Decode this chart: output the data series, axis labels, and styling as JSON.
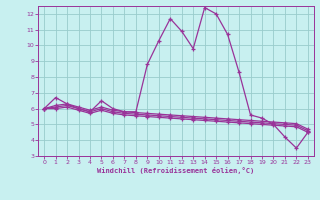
{
  "xlabel": "Windchill (Refroidissement éolien,°C)",
  "background_color": "#c8f0f0",
  "grid_color": "#99cccc",
  "line_color": "#993399",
  "x_values": [
    0,
    1,
    2,
    3,
    4,
    5,
    6,
    7,
    8,
    9,
    10,
    11,
    12,
    13,
    14,
    15,
    16,
    17,
    18,
    19,
    20,
    21,
    22,
    23
  ],
  "line1": [
    6.0,
    6.7,
    6.3,
    6.0,
    5.8,
    6.5,
    6.0,
    5.8,
    5.8,
    8.8,
    10.3,
    11.7,
    10.9,
    9.8,
    12.4,
    12.0,
    10.7,
    8.3,
    5.6,
    5.4,
    5.0,
    4.2,
    3.5,
    4.5
  ],
  "line2": [
    6.0,
    6.2,
    6.3,
    6.1,
    5.9,
    6.1,
    5.9,
    5.8,
    5.75,
    5.7,
    5.65,
    5.6,
    5.55,
    5.5,
    5.45,
    5.4,
    5.35,
    5.3,
    5.25,
    5.2,
    5.15,
    5.1,
    5.05,
    4.7
  ],
  "line3": [
    6.0,
    6.1,
    6.2,
    6.0,
    5.8,
    6.0,
    5.8,
    5.7,
    5.65,
    5.6,
    5.55,
    5.5,
    5.45,
    5.4,
    5.35,
    5.3,
    5.25,
    5.2,
    5.15,
    5.1,
    5.05,
    5.0,
    4.95,
    4.6
  ],
  "line4": [
    6.0,
    6.0,
    6.1,
    5.9,
    5.7,
    5.9,
    5.7,
    5.6,
    5.55,
    5.5,
    5.45,
    5.4,
    5.35,
    5.3,
    5.25,
    5.2,
    5.15,
    5.1,
    5.05,
    5.0,
    4.95,
    4.9,
    4.85,
    4.5
  ],
  "ylim": [
    3,
    12.5
  ],
  "yticks": [
    3,
    4,
    5,
    6,
    7,
    8,
    9,
    10,
    11,
    12
  ],
  "xticks": [
    0,
    1,
    2,
    3,
    4,
    5,
    6,
    7,
    8,
    9,
    10,
    11,
    12,
    13,
    14,
    15,
    16,
    17,
    18,
    19,
    20,
    21,
    22,
    23
  ]
}
